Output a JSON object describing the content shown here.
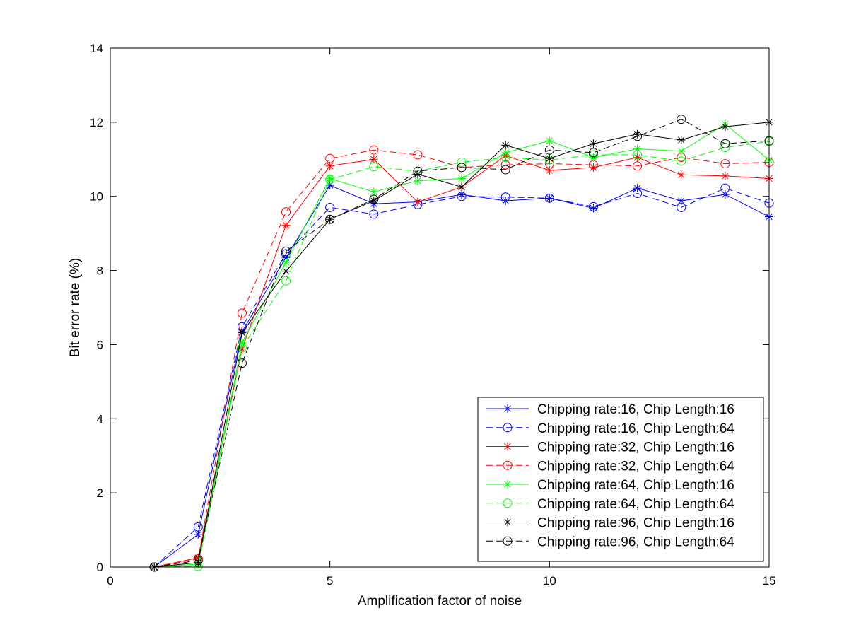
{
  "chart_data": {
    "type": "line",
    "title": "",
    "xlabel": "Amplification factor of noise",
    "ylabel": "Bit error rate (%)",
    "xlim": [
      0,
      15
    ],
    "ylim": [
      0,
      14
    ],
    "xticks": [
      "0",
      "5",
      "10",
      "15"
    ],
    "yticks": [
      "0",
      "2",
      "4",
      "6",
      "8",
      "10",
      "12",
      "14"
    ],
    "grid": false,
    "legend_position": "bottom-right",
    "x": [
      1,
      2,
      3,
      4,
      5,
      6,
      7,
      8,
      9,
      10,
      11,
      12,
      13,
      14,
      15
    ],
    "series": [
      {
        "name": "Chipping rate:16, Chip Length:16",
        "color": "#0000ff",
        "marker": "star",
        "dash": "solid",
        "values": [
          0,
          0.88,
          6.35,
          8.35,
          10.3,
          9.8,
          9.85,
          10.05,
          9.88,
          9.95,
          9.68,
          10.22,
          9.88,
          10.05,
          9.45
        ]
      },
      {
        "name": "Chipping rate:16, Chip Length:64",
        "color": "#0000ff",
        "marker": "circle",
        "dash": "dashed",
        "values": [
          0,
          1.08,
          6.48,
          8.45,
          9.7,
          9.52,
          9.78,
          10.0,
          9.98,
          9.95,
          9.72,
          10.08,
          9.7,
          10.22,
          9.82
        ]
      },
      {
        "name": "Chipping rate:32, Chip Length:16",
        "color": "#ff0000",
        "marker": "star",
        "dash": "solid",
        "values": [
          0,
          0.25,
          5.88,
          9.22,
          10.82,
          11.0,
          9.85,
          10.25,
          11.1,
          10.7,
          10.78,
          11.05,
          10.58,
          10.55,
          10.48
        ]
      },
      {
        "name": "Chipping rate:32, Chip Length:64",
        "color": "#ff0000",
        "marker": "circle",
        "dash": "dashed",
        "values": [
          0,
          0.22,
          6.85,
          9.58,
          11.02,
          11.25,
          11.12,
          10.78,
          10.85,
          10.88,
          10.85,
          10.82,
          11.05,
          10.88,
          10.92
        ]
      },
      {
        "name": "Chipping rate:64, Chip Length:16",
        "color": "#00ff00",
        "marker": "star",
        "dash": "solid",
        "values": [
          0,
          0.08,
          6.05,
          8.22,
          10.48,
          10.12,
          10.42,
          10.48,
          11.18,
          11.5,
          11.05,
          11.28,
          11.22,
          11.95,
          10.98
        ]
      },
      {
        "name": "Chipping rate:64, Chip Length:64",
        "color": "#00ff00",
        "marker": "circle",
        "dash": "dashed",
        "values": [
          0,
          0.02,
          5.92,
          7.72,
          10.45,
          10.8,
          10.68,
          10.92,
          11.05,
          10.98,
          11.12,
          11.12,
          10.95,
          11.32,
          11.48
        ]
      },
      {
        "name": "Chipping rate:96, Chip Length:16",
        "color": "#000000",
        "marker": "star",
        "dash": "solid",
        "values": [
          0,
          0.12,
          6.32,
          7.98,
          9.38,
          9.88,
          10.6,
          10.25,
          11.38,
          11.02,
          11.42,
          11.68,
          11.52,
          11.88,
          12.0
        ]
      },
      {
        "name": "Chipping rate:96, Chip Length:64",
        "color": "#000000",
        "marker": "circle",
        "dash": "dashed",
        "values": [
          0,
          0.18,
          5.5,
          8.52,
          9.38,
          9.92,
          10.68,
          10.78,
          10.72,
          11.25,
          11.18,
          11.62,
          12.08,
          11.42,
          11.5
        ]
      }
    ]
  }
}
